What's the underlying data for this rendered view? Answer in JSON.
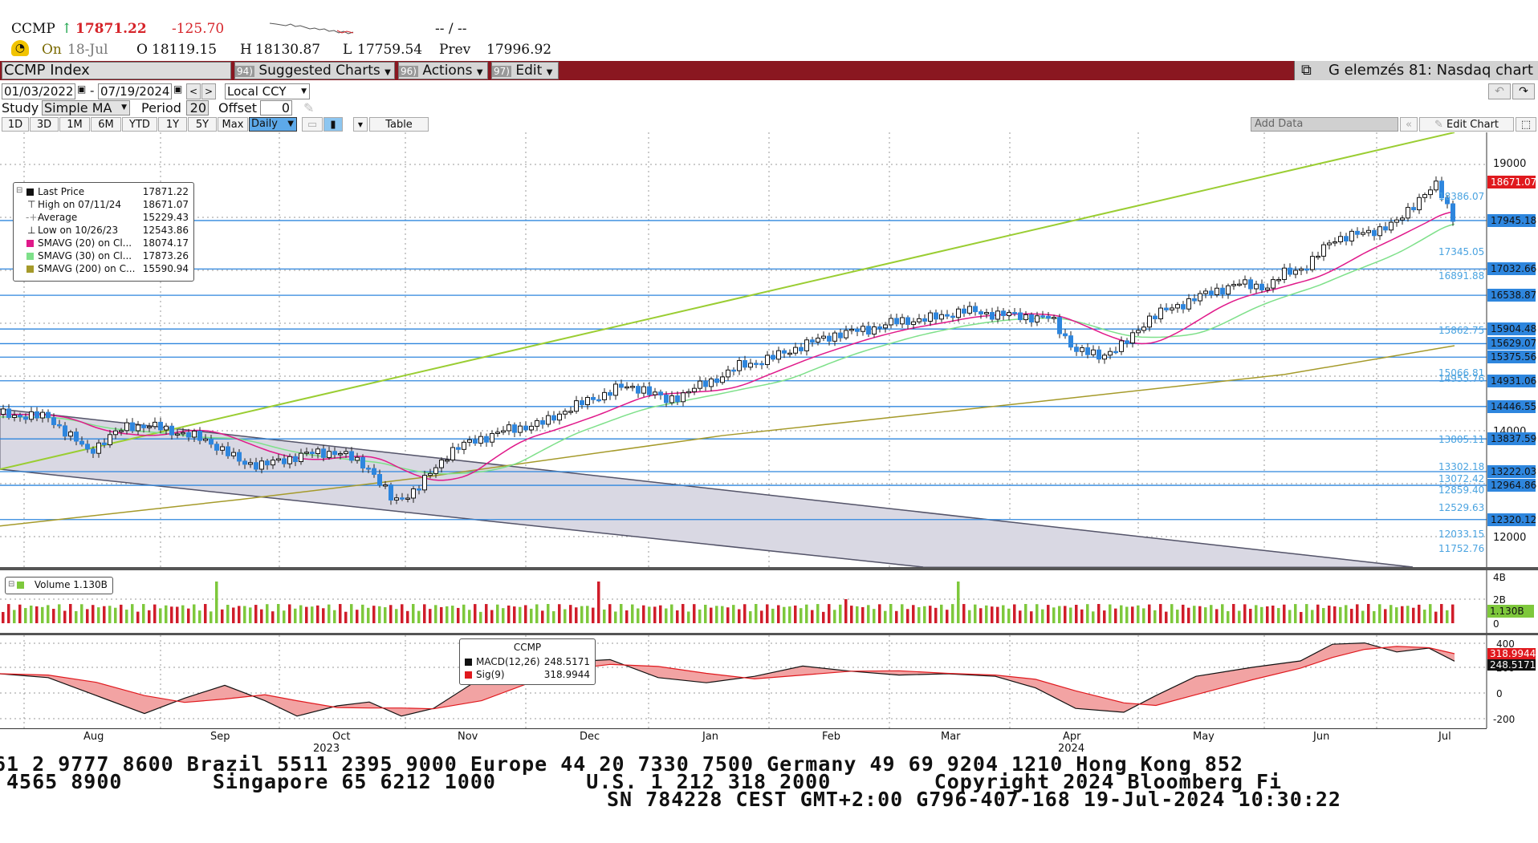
{
  "quote": {
    "ticker": "CCMP",
    "arrow": "↑",
    "last": "17871.22",
    "change": "-125.70",
    "range": "-- / --",
    "on_label": "On",
    "date": "18-Jul",
    "o_label": "O",
    "open": "18119.15",
    "h_label": "H",
    "high": "18130.87",
    "l_label": "L",
    "low": "17759.54",
    "prev_label": "Prev",
    "prev": "17996.92"
  },
  "toolbar": {
    "security": "CCMP Index",
    "suggested": {
      "num": "94)",
      "label": "Suggested Charts"
    },
    "actions": {
      "num": "96)",
      "label": "Actions"
    },
    "edit": {
      "num": "97)",
      "label": "Edit"
    },
    "chart_title": "G elemzés 81: Nasdaq chart"
  },
  "controls": {
    "start_date": "01/03/2022",
    "end_date": "07/19/2024",
    "currency": "Local CCY",
    "study_label": "Study",
    "study": "Simple MA",
    "period_label": "Period",
    "period": "20",
    "offset_label": "Offset",
    "offset": "0",
    "ranges": [
      "1D",
      "3D",
      "1M",
      "6M",
      "YTD",
      "1Y",
      "5Y",
      "Max"
    ],
    "frequency": "Daily",
    "table": "Table",
    "add_data": "Add Data",
    "edit_chart": "Edit Chart"
  },
  "legend": {
    "rows": [
      {
        "label": "Last Price",
        "value": "17871.22",
        "color": "#111111"
      },
      {
        "label": "High on 07/11/24",
        "value": "18671.07",
        "color": "#111111"
      },
      {
        "label": "Average",
        "value": "15229.43",
        "color": "#888888"
      },
      {
        "label": "Low on 10/26/23",
        "value": "12543.86",
        "color": "#111111"
      },
      {
        "label": "SMAVG (20)  on Cl...",
        "value": "18074.17",
        "color": "#e0198a"
      },
      {
        "label": "SMAVG (30)  on Cl...",
        "value": "17873.26",
        "color": "#7ee08a"
      },
      {
        "label": "SMAVG (200)  on C...",
        "value": "15590.94",
        "color": "#a59a2a"
      }
    ]
  },
  "price_axis": {
    "ticks": [
      "19000",
      "14000",
      "12000"
    ],
    "boxed": [
      {
        "v": "18671.07",
        "color": "#e0191e"
      },
      {
        "v": "17945.18",
        "color": "#2e86de"
      },
      {
        "v": "17032.66",
        "color": "#2e86de"
      },
      {
        "v": "16538.87",
        "color": "#2e86de"
      },
      {
        "v": "15904.48",
        "color": "#2e86de"
      },
      {
        "v": "15629.07",
        "color": "#2e86de"
      },
      {
        "v": "15375.56",
        "color": "#2e86de"
      },
      {
        "v": "14931.06",
        "color": "#2e86de"
      },
      {
        "v": "14446.55",
        "color": "#2e86de"
      },
      {
        "v": "13837.59",
        "color": "#2e86de"
      },
      {
        "v": "13222.03",
        "color": "#2e86de"
      },
      {
        "v": "12964.86",
        "color": "#2e86de"
      },
      {
        "v": "12320.12",
        "color": "#2e86de"
      }
    ],
    "levels": [
      "18386.07",
      "17345.05",
      "16891.88",
      "15862.75",
      "15066.81",
      "14955.76",
      "13805.11",
      "13302.18",
      "13072.42",
      "12859.40",
      "12529.63",
      "12033.15",
      "11752.76"
    ]
  },
  "volume": {
    "label": "Volume",
    "value": "1.130B",
    "ticks": [
      "4B",
      "2B",
      "0"
    ],
    "boxed": "1.130B"
  },
  "macd": {
    "title": "CCMP",
    "rows": [
      {
        "label": "MACD(12,26)",
        "value": "248.5171",
        "color": "#111111"
      },
      {
        "label": "Sig(9)",
        "value": "318.9944",
        "color": "#e0191e"
      }
    ],
    "ticks": [
      "400",
      "200",
      "0",
      "-200"
    ],
    "boxed": [
      {
        "v": "318.9944",
        "color": "#e0191e"
      },
      {
        "v": "248.5171",
        "color": "#111111"
      }
    ]
  },
  "x_axis": {
    "months": [
      "Aug",
      "Sep",
      "Oct",
      "Nov",
      "Dec",
      "Jan",
      "Feb",
      "Mar",
      "Apr",
      "May",
      "Jun",
      "Jul"
    ],
    "years": [
      "2023",
      "2024"
    ]
  },
  "footer": {
    "line1": "61 2 9777 8600 Brazil 5511 2395 9000 Europe 44 20 7330 7500 Germany 49 69 9204 1210 Hong Kong 852",
    "line2": "4565 8900       Singapore 65 6212 1000       U.S. 1 212 318 2000        Copyright 2024 Bloomberg Fi",
    "line3": "SN 784228 CEST GMT+2:00 G796-407-168 19-Jul-2024 10:30:22"
  },
  "colors": {
    "up": "#111111",
    "down": "#2e86de",
    "sma20": "#e0198a",
    "sma30": "#7ee08a",
    "sma200": "#a59a2a",
    "trend": "#9acd32",
    "level": "#2e86de",
    "title_bar": "#8a1720"
  }
}
